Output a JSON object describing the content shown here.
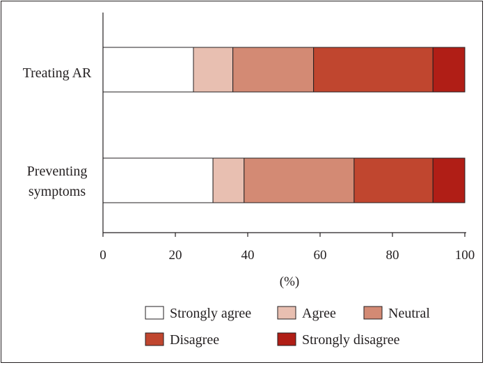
{
  "chart_data": {
    "type": "bar",
    "orientation": "horizontal",
    "stacked": true,
    "categories": [
      "Treating AR",
      "Preventing symptoms"
    ],
    "series": [
      {
        "name": "Strongly agree",
        "values": [
          25.0,
          30.4
        ],
        "color": "#ffffff"
      },
      {
        "name": "Agree",
        "values": [
          10.9,
          8.6
        ],
        "color": "#e8bfb1"
      },
      {
        "name": "Neutral",
        "values": [
          22.3,
          30.4
        ],
        "color": "#d38a74"
      },
      {
        "name": "Disagree",
        "values": [
          33.0,
          21.8
        ],
        "color": "#c0462f"
      },
      {
        "name": "Strongly disagree",
        "values": [
          8.8,
          8.8
        ],
        "color": "#b01e16"
      }
    ],
    "xlabel": "(%)",
    "ylabel": "",
    "xlim": [
      0,
      100
    ],
    "xticks": [
      "0",
      "20",
      "40",
      "60",
      "80",
      "100"
    ],
    "grid": false,
    "legend_position": "bottom"
  }
}
